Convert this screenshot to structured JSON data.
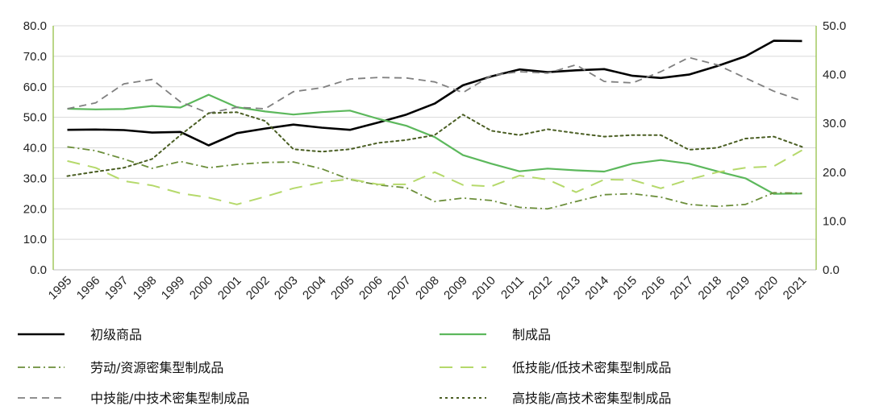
{
  "chart_data": {
    "type": "line",
    "title": "",
    "xlabel": "",
    "ylabel": "",
    "x": [
      "1995",
      "1996",
      "1997",
      "1998",
      "1999",
      "2000",
      "2001",
      "2002",
      "2003",
      "2004",
      "2005",
      "2006",
      "2007",
      "2008",
      "2009",
      "2010",
      "2011",
      "2012",
      "2013",
      "2014",
      "2015",
      "2016",
      "2017",
      "2018",
      "2019",
      "2020",
      "2021"
    ],
    "ylim": [
      0,
      80
    ],
    "y_ticks": [
      "0.0",
      "10.0",
      "20.0",
      "30.0",
      "40.0",
      "50.0",
      "60.0",
      "70.0",
      "80.0"
    ],
    "y2lim": [
      0,
      50
    ],
    "y2_ticks": [
      "0.0",
      "10.0",
      "20.0",
      "30.0",
      "40.0",
      "50.0"
    ],
    "grid": true,
    "legend_position": "bottom",
    "series": [
      {
        "name": "初级商品",
        "axis": "left",
        "color": "#000000",
        "dash": "solid",
        "width": 2.6,
        "values": [
          45.9,
          46.0,
          45.8,
          45.0,
          45.2,
          40.8,
          44.8,
          46.3,
          47.6,
          46.6,
          45.9,
          48.3,
          50.9,
          54.5,
          60.5,
          63.4,
          65.7,
          64.8,
          65.4,
          65.8,
          63.6,
          62.9,
          64.0,
          66.8,
          70.0,
          75.1,
          75.0
        ]
      },
      {
        "name": "制成品",
        "axis": "left",
        "color": "#5cb85c",
        "dash": "solid",
        "width": 2.2,
        "values": [
          52.8,
          52.6,
          52.7,
          53.7,
          53.2,
          57.4,
          53.3,
          51.9,
          50.9,
          51.7,
          52.2,
          49.5,
          47.2,
          43.5,
          37.6,
          34.8,
          32.3,
          33.2,
          32.6,
          32.2,
          34.8,
          36.0,
          34.8,
          32.3,
          30.0,
          24.9,
          25.0
        ]
      },
      {
        "name": "劳动/资源密集型制成品",
        "axis": "right",
        "color": "#6b8e3a",
        "dash": "dashdot",
        "width": 1.8,
        "values": [
          25.2,
          24.4,
          22.7,
          20.8,
          22.2,
          20.9,
          21.6,
          22.0,
          22.1,
          20.7,
          18.5,
          17.4,
          16.8,
          14.0,
          14.7,
          14.2,
          12.8,
          12.5,
          14.0,
          15.4,
          15.6,
          14.9,
          13.4,
          13.0,
          13.4,
          15.8,
          15.7
        ]
      },
      {
        "name": "低技能/低技术密集型制成品",
        "axis": "right",
        "color": "#b5d96b",
        "dash": "longdash",
        "width": 2.0,
        "values": [
          22.3,
          20.9,
          18.2,
          17.3,
          15.7,
          14.8,
          13.4,
          15.0,
          16.7,
          17.9,
          18.6,
          17.5,
          17.5,
          20.0,
          17.4,
          17.1,
          19.3,
          18.5,
          15.9,
          18.5,
          18.4,
          16.7,
          18.5,
          20.0,
          20.9,
          21.2,
          24.5
        ]
      },
      {
        "name": "中技能/中技术密集型制成品",
        "axis": "right",
        "color": "#808080",
        "dash": "dash",
        "width": 1.8,
        "values": [
          33.0,
          34.2,
          38.1,
          39.0,
          34.4,
          32.1,
          33.3,
          33.0,
          36.5,
          37.3,
          39.1,
          39.4,
          39.3,
          38.5,
          36.3,
          39.8,
          40.6,
          40.3,
          42.0,
          38.6,
          38.3,
          40.6,
          43.5,
          42.0,
          39.3,
          36.6,
          34.6
        ]
      },
      {
        "name": "高技能/高技术密集型制成品",
        "axis": "right",
        "color": "#4a5e23",
        "dash": "dot",
        "width": 2.0,
        "values": [
          19.2,
          20.1,
          20.9,
          22.7,
          27.6,
          32.1,
          32.3,
          30.5,
          24.7,
          24.2,
          24.7,
          26.0,
          26.6,
          27.6,
          31.8,
          28.5,
          27.6,
          28.8,
          28.0,
          27.3,
          27.6,
          27.6,
          24.6,
          25.0,
          26.9,
          27.3,
          25.2
        ]
      }
    ]
  }
}
